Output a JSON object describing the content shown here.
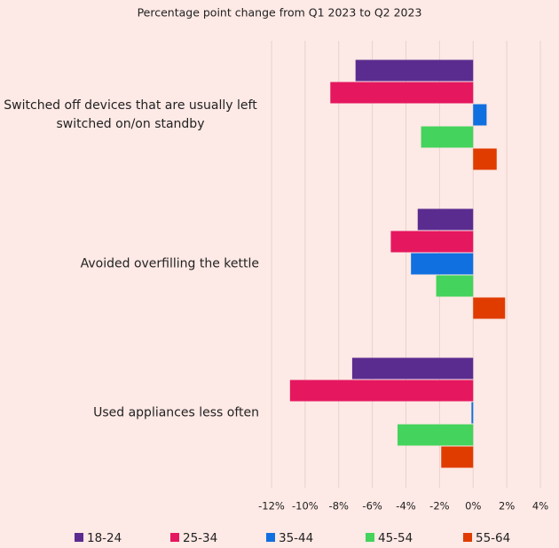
{
  "chart_data": {
    "type": "bar",
    "orientation": "horizontal",
    "title": "Percentage point change from Q1 2023 to Q2 2023",
    "categories": [
      "Switched off devices that are usually left switched on/on standby",
      "Avoided overfilling the kettle",
      "Used appliances less often"
    ],
    "series": [
      {
        "name": "18-24",
        "color": "#5b2c8f",
        "values": [
          -7.0,
          -3.3,
          -7.2
        ]
      },
      {
        "name": "25-34",
        "color": "#e5175f",
        "values": [
          -8.5,
          -4.9,
          -10.9
        ]
      },
      {
        "name": "35-44",
        "color": "#1070e0",
        "values": [
          0.8,
          -3.7,
          -0.1
        ]
      },
      {
        "name": "45-54",
        "color": "#44d35c",
        "values": [
          -3.1,
          -2.2,
          -4.5
        ]
      },
      {
        "name": "55-64",
        "color": "#e03c00",
        "values": [
          1.4,
          1.9,
          -1.9
        ]
      }
    ],
    "xlim": [
      -12,
      4
    ],
    "xticks": [
      {
        "value": -12,
        "label": "-12%"
      },
      {
        "value": -10,
        "label": "-10%"
      },
      {
        "value": -8,
        "label": "-8%"
      },
      {
        "value": -6,
        "label": "-6%"
      },
      {
        "value": -4,
        "label": "-4%"
      },
      {
        "value": -2,
        "label": "-2%"
      },
      {
        "value": 0,
        "label": "0%"
      },
      {
        "value": 2,
        "label": "2%"
      },
      {
        "value": 4,
        "label": "4%"
      }
    ],
    "grid": true,
    "legend": "bottom"
  }
}
